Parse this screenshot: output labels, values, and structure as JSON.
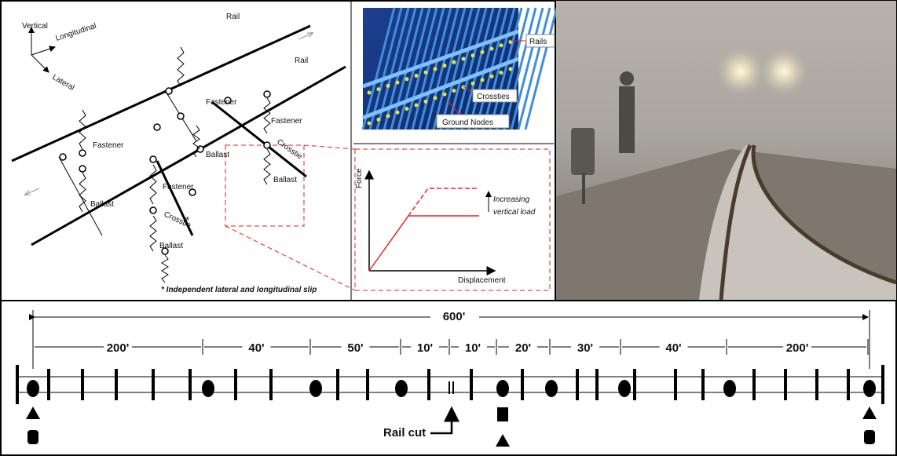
{
  "model": {
    "axes": {
      "vertical": "Vertical",
      "longitudinal": "Longitudinal",
      "lateral": "Lateral"
    },
    "rail_labels": [
      "Rail",
      "Rail"
    ],
    "fastener_labels": [
      "Fastener",
      "Fastener",
      "Fastener",
      "Fastener"
    ],
    "ballast_labels": [
      "Ballast",
      "Ballast",
      "Ballast",
      "Ballast"
    ],
    "crosstie_labels": [
      "Crosstie",
      "Crosstie"
    ],
    "asterisk": "*",
    "note": "* Independent lateral and longitudinal slip"
  },
  "fe_model": {
    "labels": [
      "Rails",
      "Crossties",
      "Ground Nodes"
    ]
  },
  "force_plot": {
    "y_label": "Force",
    "x_label": "Displacement",
    "annotation": [
      "Increasing",
      "vertical load"
    ]
  },
  "layout": {
    "total": "600'",
    "segments": [
      "200'",
      "40'",
      "50'",
      "10'",
      "10'",
      "20'",
      "30'",
      "40'",
      "200'"
    ],
    "rail_cut": "Rail cut"
  }
}
